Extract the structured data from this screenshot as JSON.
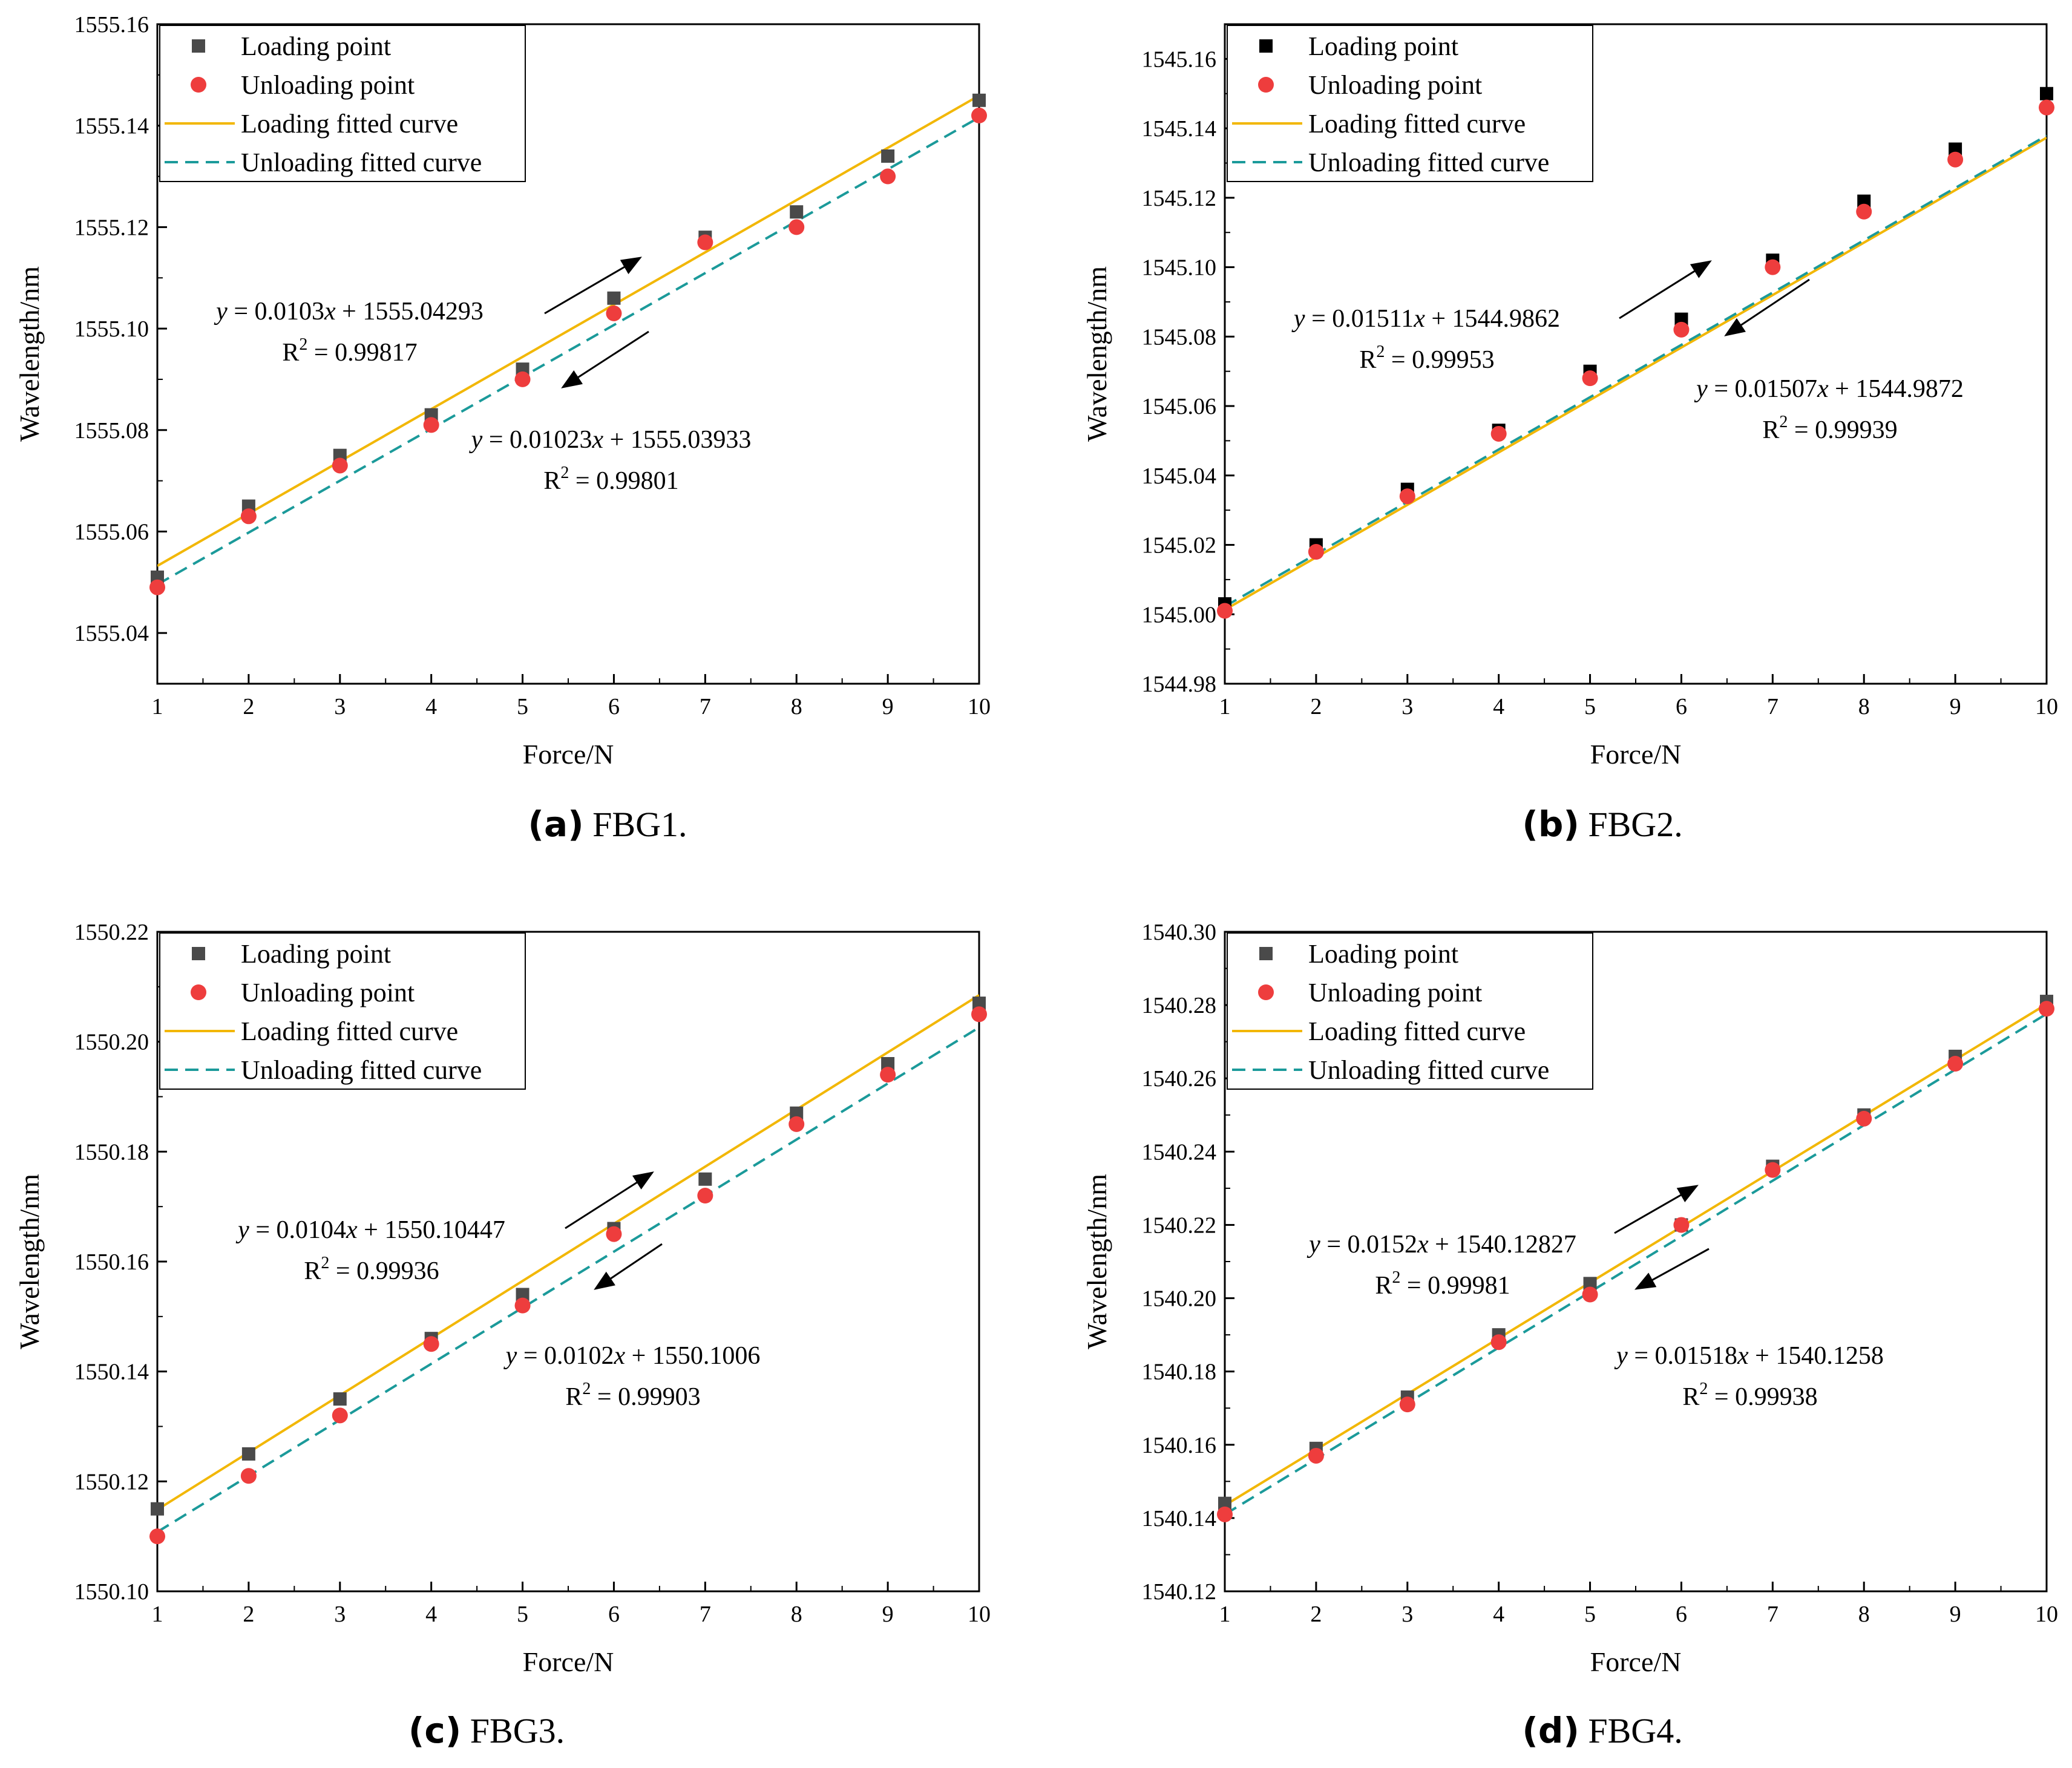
{
  "legend": {
    "loading_point": "Loading point",
    "unloading_point": "Unloading point",
    "loading_fit": "Loading fitted curve",
    "unloading_fit": "Unloading fitted curve"
  },
  "colors": {
    "loading_point": "#4a4a4a",
    "unloading_point": "#ee3d3d",
    "loading_fit": "#f2b705",
    "unloading_fit": "#1b9a9a",
    "arrow": "#000000"
  },
  "chart_data": [
    {
      "type": "scatter",
      "caption_letter": "(a)",
      "caption_text": "FBG1.",
      "xlabel": "Force/N",
      "ylabel": "Wavelength/nm",
      "xlim": [
        1,
        10
      ],
      "ylim": [
        1555.03,
        1555.16
      ],
      "x_ticks": [
        "1",
        "2",
        "3",
        "4",
        "5",
        "6",
        "7",
        "8",
        "9",
        "10"
      ],
      "y_ticks": [
        "1555.04",
        "1555.06",
        "1555.08",
        "1555.10",
        "1555.12",
        "1555.14",
        "1555.16"
      ],
      "legend_position": "top-left",
      "loading_marker_color": "#4a4a4a",
      "x": [
        1,
        2,
        3,
        4,
        5,
        6,
        7,
        8,
        9,
        10
      ],
      "series": [
        {
          "name": "Loading point",
          "values": [
            1555.051,
            1555.065,
            1555.075,
            1555.083,
            1555.092,
            1555.106,
            1555.118,
            1555.123,
            1555.134,
            1555.145
          ]
        },
        {
          "name": "Unloading point",
          "values": [
            1555.049,
            1555.063,
            1555.073,
            1555.081,
            1555.09,
            1555.103,
            1555.117,
            1555.12,
            1555.13,
            1555.142
          ]
        }
      ],
      "fits": {
        "loading": {
          "slope": 0.0103,
          "intercept": 1555.04293
        },
        "unloading": {
          "slope": 0.01023,
          "intercept": 1555.03933
        }
      },
      "annotations": {
        "loading": {
          "eq_prefix": "y",
          "eq_rest": " = 0.0103x + 1555.04293",
          "r2_prefix": "R",
          "r2_rest": " = 0.99817"
        },
        "unloading": {
          "eq_prefix": "y",
          "eq_rest": " = 0.01023x + 1555.03933",
          "r2_prefix": "R",
          "r2_rest": " = 0.99801"
        }
      }
    },
    {
      "type": "scatter",
      "caption_letter": "(b)",
      "caption_text": "FBG2.",
      "xlabel": "Force/N",
      "ylabel": "Wavelength/nm",
      "xlim": [
        1,
        10
      ],
      "ylim": [
        1544.98,
        1545.17
      ],
      "x_ticks": [
        "1",
        "2",
        "3",
        "4",
        "5",
        "6",
        "7",
        "8",
        "9",
        "10"
      ],
      "y_ticks": [
        "1544.98",
        "1545.00",
        "1545.02",
        "1545.04",
        "1545.06",
        "1545.08",
        "1545.10",
        "1545.12",
        "1545.14",
        "1545.16"
      ],
      "legend_position": "top-left",
      "loading_marker_color": "#000000",
      "x": [
        1,
        2,
        3,
        4,
        5,
        6,
        7,
        8,
        9,
        10
      ],
      "series": [
        {
          "name": "Loading point",
          "values": [
            1545.003,
            1545.02,
            1545.036,
            1545.053,
            1545.07,
            1545.085,
            1545.102,
            1545.119,
            1545.134,
            1545.15
          ]
        },
        {
          "name": "Unloading point",
          "values": [
            1545.001,
            1545.018,
            1545.034,
            1545.052,
            1545.068,
            1545.082,
            1545.1,
            1545.116,
            1545.131,
            1545.146
          ]
        }
      ],
      "fits": {
        "loading": {
          "slope": 0.01511,
          "intercept": 1544.9862
        },
        "unloading": {
          "slope": 0.01507,
          "intercept": 1544.9872
        }
      },
      "annotations": {
        "loading": {
          "eq_prefix": "y",
          "eq_rest": " = 0.01511x + 1544.9862",
          "r2_prefix": "R",
          "r2_rest": " = 0.99953"
        },
        "unloading": {
          "eq_prefix": "y",
          "eq_rest": " = 0.01507x + 1544.9872",
          "r2_prefix": "R",
          "r2_rest": " = 0.99939"
        }
      }
    },
    {
      "type": "scatter",
      "caption_letter": "(c)",
      "caption_text": "FBG3.",
      "xlabel": "Force/N",
      "ylabel": "Wavelength/nm",
      "xlim": [
        1,
        10
      ],
      "ylim": [
        1550.1,
        1550.22
      ],
      "x_ticks": [
        "1",
        "2",
        "3",
        "4",
        "5",
        "6",
        "7",
        "8",
        "9",
        "10"
      ],
      "y_ticks": [
        "1550.10",
        "1550.12",
        "1550.14",
        "1550.16",
        "1550.18",
        "1550.20",
        "1550.22"
      ],
      "legend_position": "top-left",
      "loading_marker_color": "#4a4a4a",
      "x": [
        1,
        2,
        3,
        4,
        5,
        6,
        7,
        8,
        9,
        10
      ],
      "series": [
        {
          "name": "Loading point",
          "values": [
            1550.115,
            1550.125,
            1550.135,
            1550.146,
            1550.154,
            1550.166,
            1550.175,
            1550.187,
            1550.196,
            1550.207
          ]
        },
        {
          "name": "Unloading point",
          "values": [
            1550.11,
            1550.121,
            1550.132,
            1550.145,
            1550.152,
            1550.165,
            1550.172,
            1550.185,
            1550.194,
            1550.205
          ]
        }
      ],
      "fits": {
        "loading": {
          "slope": 0.0104,
          "intercept": 1550.10447
        },
        "unloading": {
          "slope": 0.0102,
          "intercept": 1550.1006
        }
      },
      "annotations": {
        "loading": {
          "eq_prefix": "y",
          "eq_rest": " = 0.0104x + 1550.10447",
          "r2_prefix": "R",
          "r2_rest": " = 0.99936"
        },
        "unloading": {
          "eq_prefix": "y",
          "eq_rest": " = 0.0102x + 1550.1006",
          "r2_prefix": "R",
          "r2_rest": " = 0.99903"
        }
      }
    },
    {
      "type": "scatter",
      "caption_letter": "(d)",
      "caption_text": "FBG4.",
      "xlabel": "Force/N",
      "ylabel": "Wavelength/nm",
      "xlim": [
        1,
        10
      ],
      "ylim": [
        1540.12,
        1540.3
      ],
      "x_ticks": [
        "1",
        "2",
        "3",
        "4",
        "5",
        "6",
        "7",
        "8",
        "9",
        "10"
      ],
      "y_ticks": [
        "1540.12",
        "1540.14",
        "1540.16",
        "1540.18",
        "1540.20",
        "1540.22",
        "1540.24",
        "1540.26",
        "1540.28",
        "1540.30"
      ],
      "legend_position": "top-left",
      "loading_marker_color": "#4a4a4a",
      "x": [
        1,
        2,
        3,
        4,
        5,
        6,
        7,
        8,
        9,
        10
      ],
      "series": [
        {
          "name": "Loading point",
          "values": [
            1540.144,
            1540.159,
            1540.173,
            1540.19,
            1540.204,
            1540.22,
            1540.236,
            1540.25,
            1540.266,
            1540.281
          ]
        },
        {
          "name": "Unloading point",
          "values": [
            1540.141,
            1540.157,
            1540.171,
            1540.188,
            1540.201,
            1540.22,
            1540.235,
            1540.249,
            1540.264,
            1540.279
          ]
        }
      ],
      "fits": {
        "loading": {
          "slope": 0.0152,
          "intercept": 1540.12827
        },
        "unloading": {
          "slope": 0.01518,
          "intercept": 1540.1258
        }
      },
      "annotations": {
        "loading": {
          "eq_prefix": "y",
          "eq_rest": " = 0.0152x + 1540.12827",
          "r2_prefix": "R",
          "r2_rest": " = 0.99981"
        },
        "unloading": {
          "eq_prefix": "y",
          "eq_rest": " = 0.01518x + 1540.1258",
          "r2_prefix": "R",
          "r2_rest": " = 0.99938"
        }
      }
    }
  ]
}
